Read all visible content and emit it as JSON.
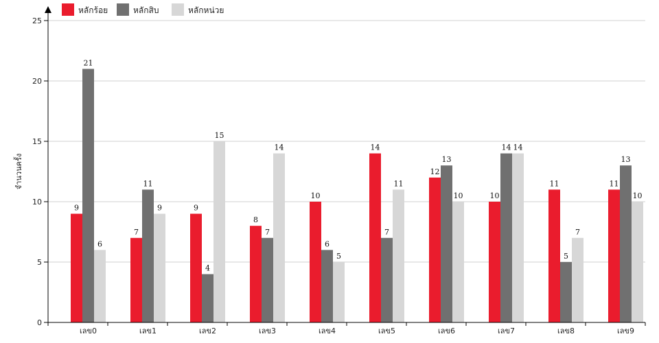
{
  "chart_data": {
    "type": "bar",
    "ylabel": "จำนวนครั้ง",
    "ylim": [
      0,
      25
    ],
    "yticks": [
      0,
      5,
      10,
      15,
      20,
      25
    ],
    "grid": true,
    "legend_position": "top-left",
    "categories": [
      "เลข0",
      "เลข1",
      "เลข2",
      "เลข3",
      "เลข4",
      "เลข5",
      "เลข6",
      "เลข7",
      "เลข8",
      "เลข9"
    ],
    "series": [
      {
        "name": "หลักร้อย",
        "color": "#ea1c2d",
        "values": [
          9,
          7,
          9,
          8,
          10,
          14,
          12,
          10,
          11,
          11
        ]
      },
      {
        "name": "หลักสิบ",
        "color": "#707070",
        "values": [
          21,
          11,
          4,
          7,
          6,
          7,
          13,
          14,
          5,
          13
        ]
      },
      {
        "name": "หลักหน่วย",
        "color": "#d7d7d7",
        "values": [
          6,
          9,
          15,
          14,
          5,
          11,
          10,
          14,
          7,
          10
        ]
      }
    ]
  }
}
